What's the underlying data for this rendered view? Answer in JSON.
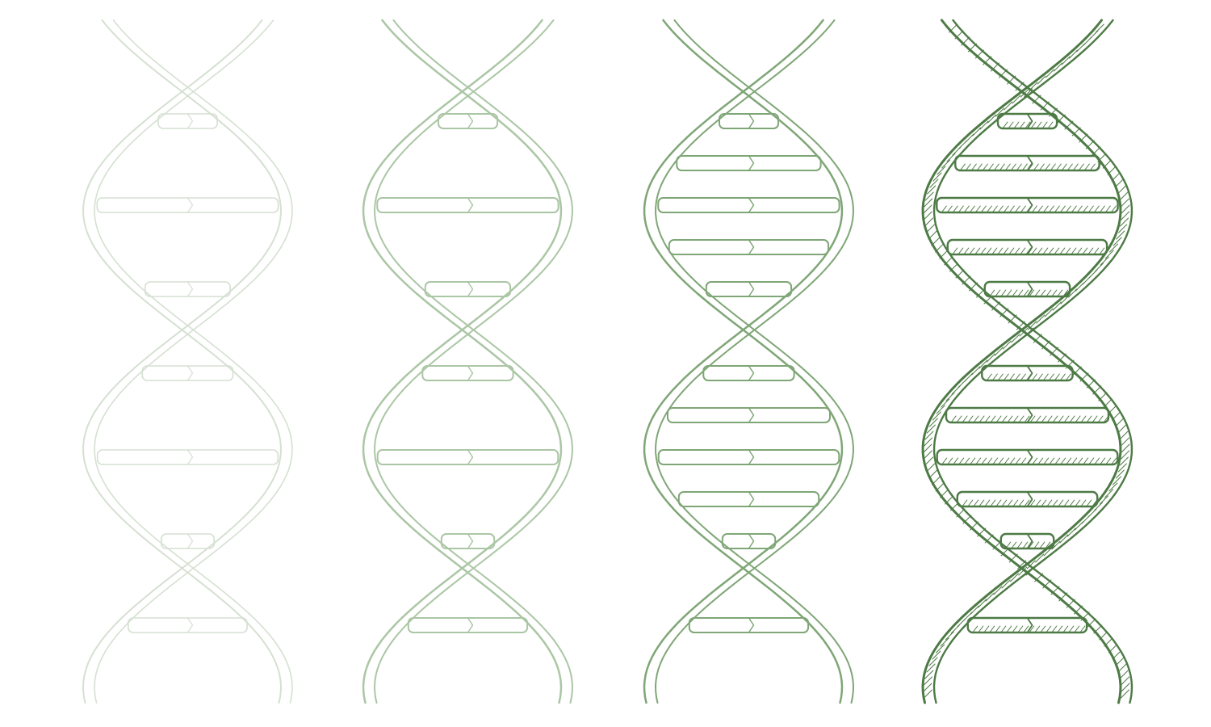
{
  "scene": {
    "background": "#ffffff",
    "subject": "dna-double-helix",
    "stages": [
      {
        "name": "stage-1-faint-sketch",
        "color": "#c7d6c3",
        "opacity": 0.75,
        "rungs": "partial",
        "hatching": false
      },
      {
        "name": "stage-2-light-outline",
        "color": "#9dbd96",
        "opacity": 0.85,
        "rungs": "partial",
        "hatching": false
      },
      {
        "name": "stage-3-full-outline",
        "color": "#7fa676",
        "opacity": 1.0,
        "rungs": "full",
        "hatching": false
      },
      {
        "name": "stage-4-shaded-drawing",
        "color": "#4d7a45",
        "opacity": 1.0,
        "rungs": "full",
        "hatching": true
      }
    ]
  }
}
